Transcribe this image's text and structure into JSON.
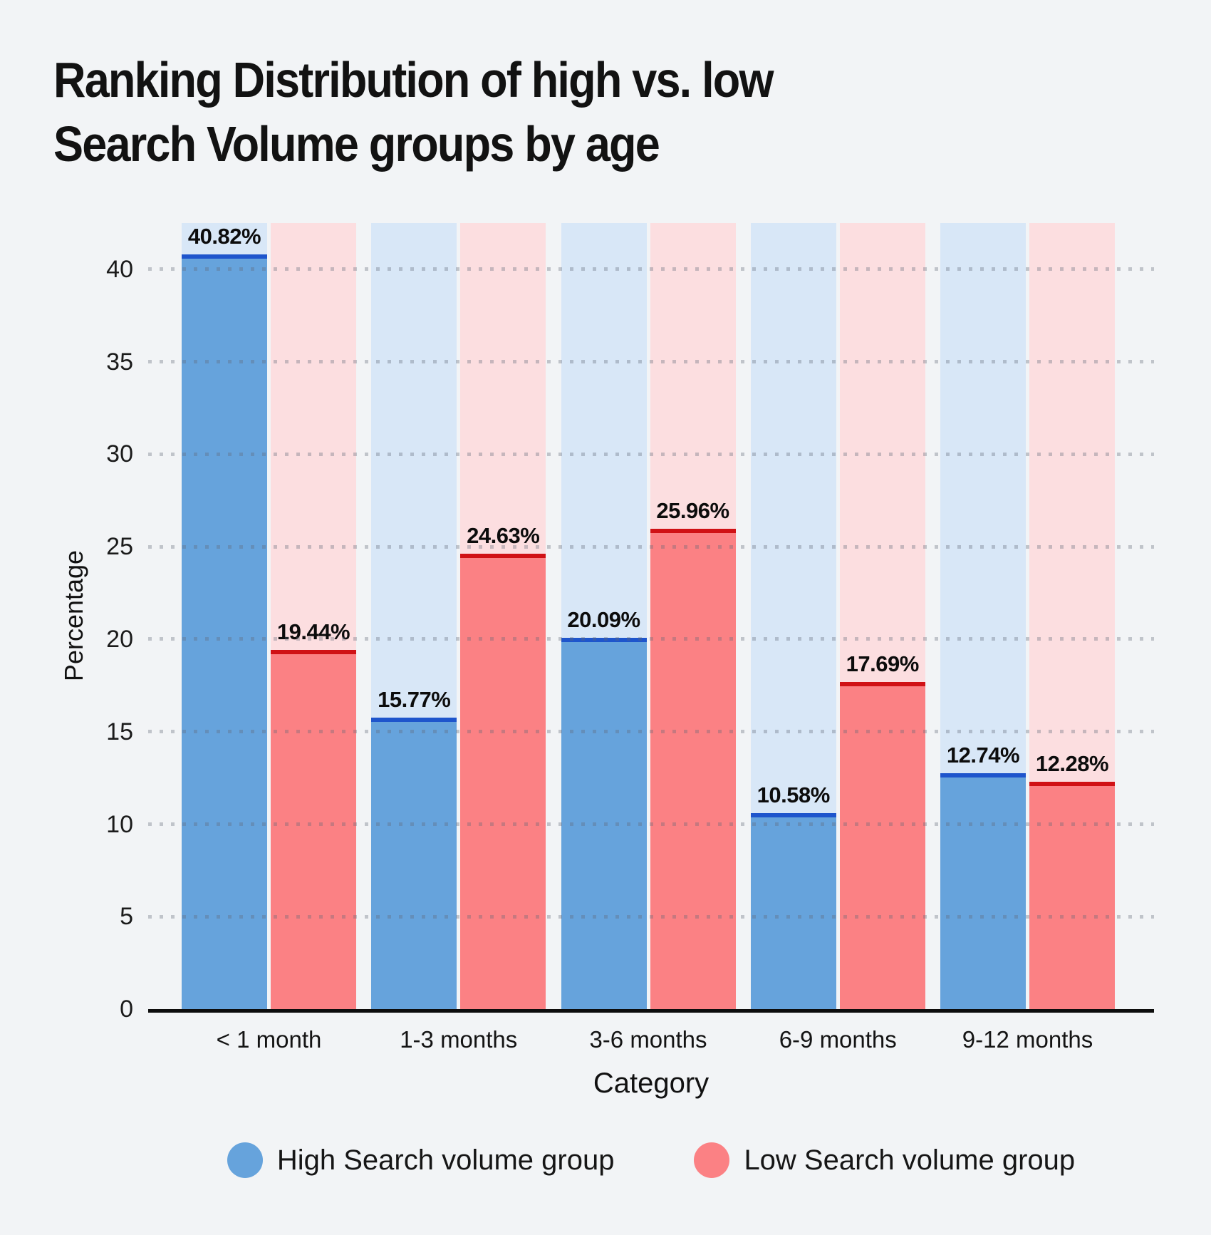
{
  "title_line1": "Ranking Distribution of high vs. low",
  "title_line2": "Search Volume groups by age",
  "chart_data": {
    "type": "bar",
    "categories": [
      "< 1 month",
      "1-3 months",
      "3-6 months",
      "6-9 months",
      "9-12 months"
    ],
    "series": [
      {
        "name": "High Search volume group",
        "key": "high",
        "values": [
          40.82,
          15.77,
          20.09,
          10.58,
          12.74
        ],
        "labels": [
          "40.82%",
          "15.77%",
          "20.09%",
          "10.58%",
          "12.74%"
        ],
        "bar_color": "#66a3dc",
        "cap_color": "#1e55cc",
        "track_color": "#d8e7f7"
      },
      {
        "name": "Low Search volume group",
        "key": "low",
        "values": [
          19.44,
          24.63,
          25.96,
          17.69,
          12.28
        ],
        "labels": [
          "19.44%",
          "24.63%",
          "25.96%",
          "17.69%",
          "12.28%"
        ],
        "bar_color": "#fb8184",
        "cap_color": "#d01115",
        "track_color": "#fcdee0"
      }
    ],
    "xlabel": "Category",
    "ylabel": "Percentage",
    "yticks": [
      0,
      5,
      10,
      15,
      20,
      25,
      30,
      35,
      40
    ],
    "ylim": [
      0,
      42.5
    ],
    "grid": "dotted-horizontal",
    "legend_position": "bottom",
    "background_color": "#f2f4f6",
    "axis_color": "#0d0d0d"
  }
}
